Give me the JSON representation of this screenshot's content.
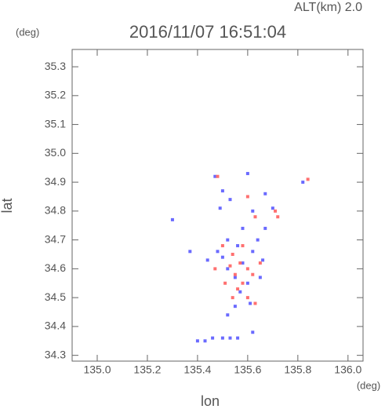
{
  "chart_data": {
    "type": "scatter",
    "title": "2016/11/07 16:51:04",
    "subtitle": "ALT(km) 2.0",
    "y_unit": "(deg)",
    "x_unit": "(deg)",
    "x_label": "lon",
    "y_label": "lat",
    "xlim": [
      134.9,
      136.06
    ],
    "ylim": [
      34.28,
      35.36
    ],
    "xticks": [
      {
        "value": 135,
        "label": "135.0"
      },
      135.2,
      135.4,
      135.6,
      135.8,
      {
        "value": 136,
        "label": "136.0"
      }
    ],
    "yticks": [
      34.3,
      34.4,
      34.5,
      34.6,
      34.7,
      34.8,
      34.9,
      {
        "value": 35,
        "label": "35.0"
      },
      35.1,
      35.2,
      35.3
    ],
    "series": [
      {
        "color": "#6a6aff",
        "x": [
          135.47,
          135.6,
          135.5,
          135.53,
          135.49,
          135.62,
          135.67,
          135.7,
          135.3,
          135.52,
          135.48,
          135.44,
          135.5,
          135.56,
          135.58,
          135.62,
          135.64,
          135.55,
          135.52,
          135.6,
          135.57,
          135.61,
          135.55,
          135.52,
          135.4,
          135.43,
          135.46,
          135.5,
          135.53,
          135.56,
          135.62,
          135.37,
          135.65,
          135.66,
          135.82,
          135.58,
          135.67
        ],
        "values": [
          34.92,
          34.93,
          34.87,
          34.84,
          34.81,
          34.8,
          34.86,
          34.81,
          34.77,
          34.7,
          34.66,
          34.63,
          34.64,
          34.68,
          34.62,
          34.66,
          34.7,
          34.57,
          34.6,
          34.55,
          34.52,
          34.48,
          34.47,
          34.44,
          34.35,
          34.35,
          34.36,
          34.36,
          34.36,
          34.36,
          34.38,
          34.66,
          34.57,
          34.63,
          34.9,
          34.74,
          34.74
        ]
      },
      {
        "color": "#ff7070",
        "x": [
          135.48,
          135.84,
          135.6,
          135.72,
          135.71,
          135.63,
          135.5,
          135.54,
          135.57,
          135.53,
          135.6,
          135.62,
          135.55,
          135.58,
          135.56,
          135.6,
          135.54,
          135.65,
          135.47,
          135.51,
          135.63,
          135.58
        ],
        "values": [
          34.92,
          34.91,
          34.85,
          34.78,
          34.8,
          34.78,
          34.68,
          34.65,
          34.62,
          34.61,
          34.6,
          34.58,
          34.58,
          34.55,
          34.53,
          34.5,
          34.5,
          34.62,
          34.6,
          34.55,
          34.48,
          34.68
        ]
      }
    ]
  }
}
